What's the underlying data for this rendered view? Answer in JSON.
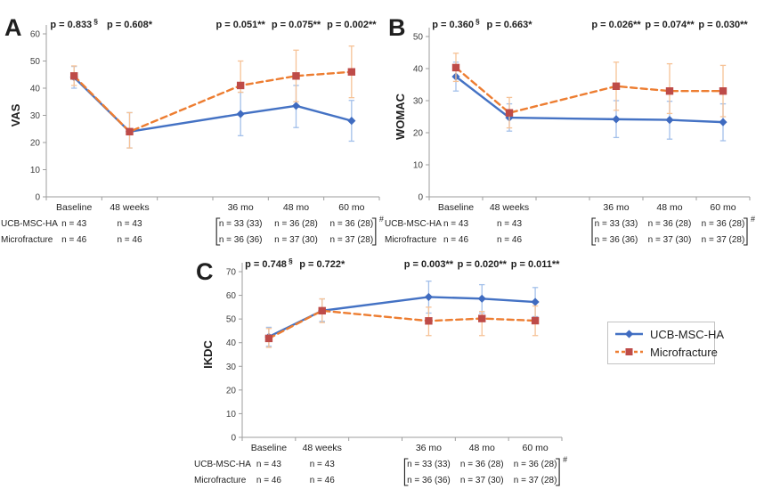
{
  "colors": {
    "series1_line": "#4472C4",
    "series1_marker": "#3F6BC0",
    "series1_error": "#A3C0EA",
    "series2_line": "#ED7D31",
    "series2_marker": "#BE4B48",
    "series2_error": "#F6C296",
    "axis": "#9E9E9E",
    "text": "#1F1F1F",
    "tick_text": "#3F3F3F"
  },
  "legend": {
    "items": [
      {
        "label": "UCB-MSC-HA",
        "marker": "diamond",
        "line_style": "solid"
      },
      {
        "label": "Microfracture",
        "marker": "square",
        "line_style": "dashed"
      }
    ]
  },
  "sample_table": {
    "row_labels": [
      "UCB-MSC-HA",
      "Microfracture"
    ],
    "rows": [
      [
        "n = 43",
        "n = 43",
        "n = 33 (33)",
        "n = 36 (28)",
        "n = 36 (28)"
      ],
      [
        "n = 46",
        "n = 46",
        "n = 36 (36)",
        "n = 37 (30)",
        "n = 37 (28)"
      ]
    ],
    "bracket_columns": [
      2,
      4
    ],
    "bracket_note": "#"
  },
  "chart_data": [
    {
      "type": "line",
      "panel_label": "A",
      "ylabel": "VAS",
      "ylim": [
        0,
        60
      ],
      "ytick_step": 10,
      "grid": false,
      "categories": [
        "Baseline",
        "48 weeks",
        "36 mo",
        "48 mo",
        "60 mo"
      ],
      "p_values": [
        {
          "text": "p = 0.833",
          "sup": "§"
        },
        {
          "text": "p = 0.608*",
          "sup": ""
        },
        {
          "text": "p = 0.051**",
          "sup": ""
        },
        {
          "text": "p = 0.075**",
          "sup": ""
        },
        {
          "text": "p = 0.002**",
          "sup": ""
        }
      ],
      "series": [
        {
          "name": "UCB-MSC-HA",
          "marker": "diamond",
          "line_style": "solid",
          "values": [
            44,
            24,
            30.5,
            33.5,
            28
          ],
          "err_low": [
            40,
            18,
            22.5,
            25.5,
            20.5
          ],
          "err_high": [
            48,
            31,
            38.5,
            41,
            35.5
          ]
        },
        {
          "name": "Microfracture",
          "marker": "square",
          "line_style": "dashed",
          "values": [
            44.5,
            24,
            41,
            44.5,
            46
          ],
          "err_low": [
            41,
            18,
            38.5,
            35,
            36.5
          ],
          "err_high": [
            48.2,
            31,
            50,
            54,
            55.5
          ]
        }
      ]
    },
    {
      "type": "line",
      "panel_label": "B",
      "ylabel": "WOMAC",
      "ylim": [
        0,
        50
      ],
      "ytick_step": 10,
      "grid": false,
      "categories": [
        "Baseline",
        "48 weeks",
        "36 mo",
        "48 mo",
        "60 mo"
      ],
      "p_values": [
        {
          "text": "p = 0.360",
          "sup": "§"
        },
        {
          "text": "p = 0.663*",
          "sup": ""
        },
        {
          "text": "p = 0.026**",
          "sup": ""
        },
        {
          "text": "p = 0.074**",
          "sup": ""
        },
        {
          "text": "p = 0.030**",
          "sup": ""
        }
      ],
      "series": [
        {
          "name": "UCB-MSC-HA",
          "marker": "diamond",
          "line_style": "solid",
          "values": [
            37.5,
            24.7,
            24.2,
            24,
            23.3
          ],
          "err_low": [
            33,
            20.5,
            18.5,
            18,
            17.5
          ],
          "err_high": [
            42,
            29,
            30,
            29.8,
            29
          ]
        },
        {
          "name": "Microfracture",
          "marker": "square",
          "line_style": "dashed",
          "values": [
            40.3,
            26.2,
            34.5,
            33,
            33
          ],
          "err_low": [
            36,
            21.5,
            27,
            26,
            25
          ],
          "err_high": [
            44.8,
            31,
            42,
            41.5,
            41
          ]
        }
      ]
    },
    {
      "type": "line",
      "panel_label": "C",
      "ylabel": "IKDC",
      "ylim": [
        0,
        70
      ],
      "ytick_step": 10,
      "grid": false,
      "categories": [
        "Baseline",
        "48 weeks",
        "36 mo",
        "48 mo",
        "60 mo"
      ],
      "p_values": [
        {
          "text": "p = 0.748",
          "sup": "§"
        },
        {
          "text": "p = 0.722*",
          "sup": ""
        },
        {
          "text": "p = 0.003**",
          "sup": ""
        },
        {
          "text": "p = 0.020**",
          "sup": ""
        },
        {
          "text": "p = 0.011**",
          "sup": ""
        }
      ],
      "series": [
        {
          "name": "UCB-MSC-HA",
          "marker": "diamond",
          "line_style": "solid",
          "values": [
            42.5,
            53.5,
            59.3,
            58.6,
            57.2
          ],
          "err_low": [
            38.5,
            49,
            52.5,
            52.5,
            51
          ],
          "err_high": [
            46.5,
            58.5,
            66,
            64.5,
            63.3
          ]
        },
        {
          "name": "Microfracture",
          "marker": "square",
          "line_style": "dashed",
          "values": [
            41.8,
            53.5,
            49.2,
            50.2,
            49.3
          ],
          "err_low": [
            38,
            48.5,
            43,
            43,
            43
          ],
          "err_high": [
            46,
            58.5,
            55,
            53.2,
            55.5
          ]
        }
      ]
    }
  ]
}
